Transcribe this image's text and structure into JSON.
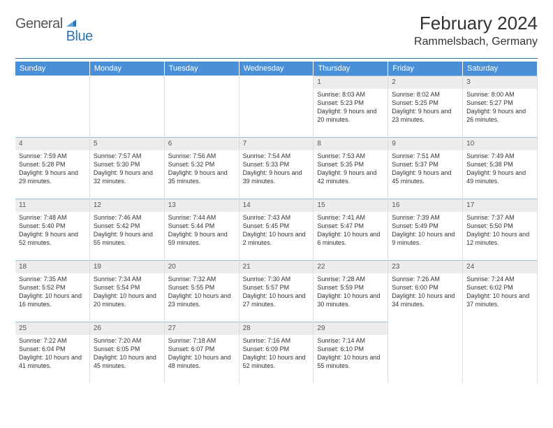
{
  "brand": {
    "part1": "General",
    "part2": "Blue"
  },
  "title": "February 2024",
  "location": "Rammelsbach, Germany",
  "colors": {
    "header_bg": "#4a90d9",
    "divider": "#2f74b5",
    "daynum_bg": "#ededed",
    "daynum_border_top": "#9fbcd6",
    "cell_border": "#dddddd",
    "text": "#333333",
    "muted": "#555555",
    "brand_blue": "#2f74b5"
  },
  "typography": {
    "title_fontsize": 26,
    "subtitle_fontsize": 16,
    "dow_fontsize": 11,
    "cell_fontsize": 9,
    "daynum_fontsize": 10,
    "logo_fontsize": 20
  },
  "layout": {
    "columns": 7,
    "rows": 5,
    "cell_min_height": 88
  },
  "days_of_week": [
    "Sunday",
    "Monday",
    "Tuesday",
    "Wednesday",
    "Thursday",
    "Friday",
    "Saturday"
  ],
  "weeks": [
    [
      null,
      null,
      null,
      null,
      {
        "day": "1",
        "sunrise": "Sunrise: 8:03 AM",
        "sunset": "Sunset: 5:23 PM",
        "daylight": "Daylight: 9 hours and 20 minutes."
      },
      {
        "day": "2",
        "sunrise": "Sunrise: 8:02 AM",
        "sunset": "Sunset: 5:25 PM",
        "daylight": "Daylight: 9 hours and 23 minutes."
      },
      {
        "day": "3",
        "sunrise": "Sunrise: 8:00 AM",
        "sunset": "Sunset: 5:27 PM",
        "daylight": "Daylight: 9 hours and 26 minutes."
      }
    ],
    [
      {
        "day": "4",
        "sunrise": "Sunrise: 7:59 AM",
        "sunset": "Sunset: 5:28 PM",
        "daylight": "Daylight: 9 hours and 29 minutes."
      },
      {
        "day": "5",
        "sunrise": "Sunrise: 7:57 AM",
        "sunset": "Sunset: 5:30 PM",
        "daylight": "Daylight: 9 hours and 32 minutes."
      },
      {
        "day": "6",
        "sunrise": "Sunrise: 7:56 AM",
        "sunset": "Sunset: 5:32 PM",
        "daylight": "Daylight: 9 hours and 35 minutes."
      },
      {
        "day": "7",
        "sunrise": "Sunrise: 7:54 AM",
        "sunset": "Sunset: 5:33 PM",
        "daylight": "Daylight: 9 hours and 39 minutes."
      },
      {
        "day": "8",
        "sunrise": "Sunrise: 7:53 AM",
        "sunset": "Sunset: 5:35 PM",
        "daylight": "Daylight: 9 hours and 42 minutes."
      },
      {
        "day": "9",
        "sunrise": "Sunrise: 7:51 AM",
        "sunset": "Sunset: 5:37 PM",
        "daylight": "Daylight: 9 hours and 45 minutes."
      },
      {
        "day": "10",
        "sunrise": "Sunrise: 7:49 AM",
        "sunset": "Sunset: 5:38 PM",
        "daylight": "Daylight: 9 hours and 49 minutes."
      }
    ],
    [
      {
        "day": "11",
        "sunrise": "Sunrise: 7:48 AM",
        "sunset": "Sunset: 5:40 PM",
        "daylight": "Daylight: 9 hours and 52 minutes."
      },
      {
        "day": "12",
        "sunrise": "Sunrise: 7:46 AM",
        "sunset": "Sunset: 5:42 PM",
        "daylight": "Daylight: 9 hours and 55 minutes."
      },
      {
        "day": "13",
        "sunrise": "Sunrise: 7:44 AM",
        "sunset": "Sunset: 5:44 PM",
        "daylight": "Daylight: 9 hours and 59 minutes."
      },
      {
        "day": "14",
        "sunrise": "Sunrise: 7:43 AM",
        "sunset": "Sunset: 5:45 PM",
        "daylight": "Daylight: 10 hours and 2 minutes."
      },
      {
        "day": "15",
        "sunrise": "Sunrise: 7:41 AM",
        "sunset": "Sunset: 5:47 PM",
        "daylight": "Daylight: 10 hours and 6 minutes."
      },
      {
        "day": "16",
        "sunrise": "Sunrise: 7:39 AM",
        "sunset": "Sunset: 5:49 PM",
        "daylight": "Daylight: 10 hours and 9 minutes."
      },
      {
        "day": "17",
        "sunrise": "Sunrise: 7:37 AM",
        "sunset": "Sunset: 5:50 PM",
        "daylight": "Daylight: 10 hours and 12 minutes."
      }
    ],
    [
      {
        "day": "18",
        "sunrise": "Sunrise: 7:35 AM",
        "sunset": "Sunset: 5:52 PM",
        "daylight": "Daylight: 10 hours and 16 minutes."
      },
      {
        "day": "19",
        "sunrise": "Sunrise: 7:34 AM",
        "sunset": "Sunset: 5:54 PM",
        "daylight": "Daylight: 10 hours and 20 minutes."
      },
      {
        "day": "20",
        "sunrise": "Sunrise: 7:32 AM",
        "sunset": "Sunset: 5:55 PM",
        "daylight": "Daylight: 10 hours and 23 minutes."
      },
      {
        "day": "21",
        "sunrise": "Sunrise: 7:30 AM",
        "sunset": "Sunset: 5:57 PM",
        "daylight": "Daylight: 10 hours and 27 minutes."
      },
      {
        "day": "22",
        "sunrise": "Sunrise: 7:28 AM",
        "sunset": "Sunset: 5:59 PM",
        "daylight": "Daylight: 10 hours and 30 minutes."
      },
      {
        "day": "23",
        "sunrise": "Sunrise: 7:26 AM",
        "sunset": "Sunset: 6:00 PM",
        "daylight": "Daylight: 10 hours and 34 minutes."
      },
      {
        "day": "24",
        "sunrise": "Sunrise: 7:24 AM",
        "sunset": "Sunset: 6:02 PM",
        "daylight": "Daylight: 10 hours and 37 minutes."
      }
    ],
    [
      {
        "day": "25",
        "sunrise": "Sunrise: 7:22 AM",
        "sunset": "Sunset: 6:04 PM",
        "daylight": "Daylight: 10 hours and 41 minutes."
      },
      {
        "day": "26",
        "sunrise": "Sunrise: 7:20 AM",
        "sunset": "Sunset: 6:05 PM",
        "daylight": "Daylight: 10 hours and 45 minutes."
      },
      {
        "day": "27",
        "sunrise": "Sunrise: 7:18 AM",
        "sunset": "Sunset: 6:07 PM",
        "daylight": "Daylight: 10 hours and 48 minutes."
      },
      {
        "day": "28",
        "sunrise": "Sunrise: 7:16 AM",
        "sunset": "Sunset: 6:09 PM",
        "daylight": "Daylight: 10 hours and 52 minutes."
      },
      {
        "day": "29",
        "sunrise": "Sunrise: 7:14 AM",
        "sunset": "Sunset: 6:10 PM",
        "daylight": "Daylight: 10 hours and 55 minutes."
      },
      null,
      null
    ]
  ]
}
